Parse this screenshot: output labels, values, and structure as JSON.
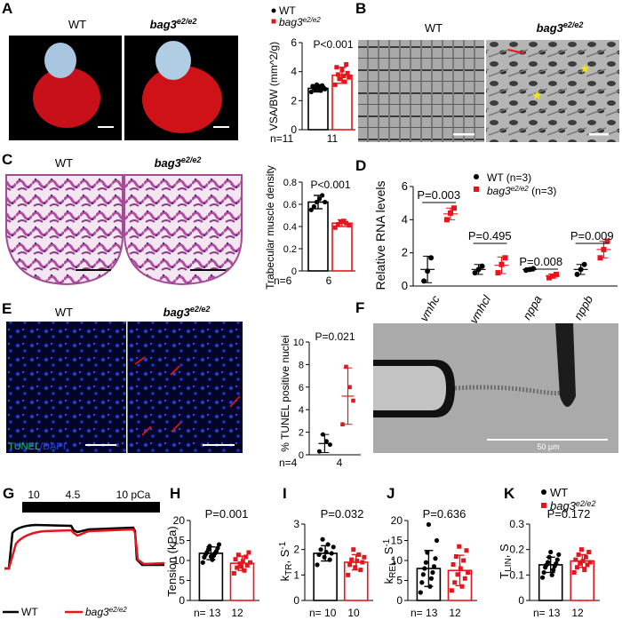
{
  "panels": {
    "A": "A",
    "B": "B",
    "C": "C",
    "D": "D",
    "E": "E",
    "F": "F",
    "G": "G",
    "H": "H",
    "I": "I",
    "J": "J",
    "K": "K"
  },
  "genotypes": {
    "wt": "WT",
    "mut": "bag3",
    "mut_sup": "e2/e2"
  },
  "colors": {
    "wt": "#000000",
    "mut": "#e8141b",
    "dapi": "#1f3fd8",
    "tunel": "#22c06a"
  },
  "figA": {
    "img_wt_label": "WT",
    "img_mut_label": "bag3",
    "img_mut_sup": "e2/e2",
    "legend_wt": "WT",
    "legend_mut": "bag3",
    "legend_mut_sup": "e2/e2",
    "ylabel": "VSA/BW (mm^2/g)",
    "pvalue": "P<0.001",
    "n_prefix": "n=11",
    "n2": "11"
  },
  "figB": {
    "wt_label": "WT",
    "mut_label": "bag3",
    "mut_sup": "e2/e2"
  },
  "figC": {
    "wt_label": "WT",
    "mut_label": "bag3",
    "mut_sup": "e2/e2",
    "ylabel": "Trabecular muscle density",
    "pvalue": "P<0.001",
    "n_prefix": "n=6",
    "n2": "6"
  },
  "figD": {
    "ylabel": "Relative RNA levels",
    "legend_wt": "WT (n=3)",
    "legend_mut": "bag3",
    "legend_mut_sup": "e2/e2",
    "legend_mut_n": " (n=3)",
    "genes": [
      "vmhc",
      "vmhcl",
      "nppa",
      "nppb"
    ],
    "pvalues": [
      "P=0.003",
      "P=0.495",
      "P=0.008",
      "P=0.009"
    ]
  },
  "figE": {
    "wt_label": "WT",
    "mut_label": "bag3",
    "mut_sup": "e2/e2",
    "stain_tunel": "TUNEL",
    "stain_sep": "/",
    "stain_dapi": "DAPI",
    "ylabel": "% TUNEL positive nuclei",
    "pvalue": "P=0.021",
    "n_prefix": "n=4",
    "n2": "4"
  },
  "figF": {
    "scale_label": "50 µm"
  },
  "figG": {
    "pca_labels": [
      "10",
      "4.5",
      "10 pCa"
    ],
    "legend_wt": "WT",
    "legend_mut": "bag3",
    "legend_mut_sup": "e2/e2"
  },
  "figH": {
    "ylabel": "Tension (kPa)",
    "pvalue": "P=0.001",
    "n_prefix": "n= 13",
    "n2": "12"
  },
  "figI": {
    "ylabel": "k",
    "ylabel_sub": "TR",
    "ylabel_unit": ", S",
    "ylabel_sup": "-1",
    "pvalue": "P=0.032",
    "n_prefix": "n= 10",
    "n2": "10"
  },
  "figJ": {
    "ylabel": "k",
    "ylabel_sub": "REL",
    "ylabel_unit": ", S",
    "ylabel_sup": "-1",
    "pvalue": "P=0.636",
    "n_prefix": "n= 13",
    "n2": "12"
  },
  "figK": {
    "ylabel": "T",
    "ylabel_sub": "LIN",
    "ylabel_unit": ", S",
    "pvalue": "P=0.172",
    "n_prefix": "n= 13",
    "n2": "12",
    "legend_wt": "WT",
    "legend_mut": "bag3",
    "legend_mut_sup": "e2/e2"
  },
  "chart_data": [
    {
      "panel": "A",
      "type": "bar",
      "categories": [
        "WT",
        "bag3 e2/e2"
      ],
      "values": [
        2.85,
        3.75
      ],
      "errors": [
        0.25,
        0.55
      ],
      "ylim": [
        0,
        6
      ],
      "yticks": [
        0,
        2,
        4,
        6
      ],
      "ylabel": "VSA/BW (mm^2/g)",
      "points": [
        [
          2.6,
          2.7,
          2.75,
          2.8,
          2.85,
          2.85,
          2.9,
          2.95,
          3.0,
          3.05,
          3.1
        ],
        [
          3.1,
          3.3,
          3.5,
          3.6,
          3.7,
          3.8,
          3.9,
          4.1,
          4.3,
          4.5,
          3.5
        ]
      ]
    },
    {
      "panel": "C",
      "type": "bar",
      "categories": [
        "WT",
        "bag3 e2/e2"
      ],
      "values": [
        0.62,
        0.43
      ],
      "errors": [
        0.06,
        0.03
      ],
      "ylim": [
        0,
        0.8
      ],
      "yticks": [
        0,
        0.2,
        0.4,
        0.6,
        0.8
      ],
      "ylabel": "Trabecular muscle density",
      "points": [
        [
          0.55,
          0.58,
          0.62,
          0.65,
          0.68,
          0.62
        ],
        [
          0.39,
          0.42,
          0.44,
          0.45,
          0.43,
          0.41
        ]
      ]
    },
    {
      "panel": "D",
      "type": "scatter",
      "categories": [
        "vmhc",
        "vmhcl",
        "nppa",
        "nppb"
      ],
      "ylim": [
        0,
        6
      ],
      "yticks": [
        0,
        2,
        4,
        6
      ],
      "ylabel": "Relative RNA levels",
      "series": [
        {
          "name": "WT (n=3)",
          "means": [
            1.0,
            1.0,
            1.0,
            1.0
          ],
          "sd": [
            0.8,
            0.3,
            0.1,
            0.3
          ],
          "points": [
            [
              0.3,
              0.9,
              1.7
            ],
            [
              0.8,
              1.0,
              1.2
            ],
            [
              0.95,
              1.0,
              1.05
            ],
            [
              0.7,
              1.0,
              1.3
            ]
          ]
        },
        {
          "name": "bag3 e2/e2 (n=3)",
          "means": [
            4.35,
            1.25,
            0.6,
            2.2
          ],
          "sd": [
            0.35,
            0.5,
            0.12,
            0.5
          ],
          "points": [
            [
              4.0,
              4.4,
              4.7
            ],
            [
              0.8,
              1.3,
              1.7
            ],
            [
              0.5,
              0.6,
              0.7
            ],
            [
              1.7,
              2.2,
              2.7
            ]
          ]
        }
      ]
    },
    {
      "panel": "E",
      "type": "scatter",
      "categories": [
        "WT",
        "bag3 e2/e2"
      ],
      "values": [
        1.0,
        5.2
      ],
      "errors": [
        0.8,
        2.5
      ],
      "ylim": [
        0,
        10
      ],
      "yticks": [
        0,
        2,
        4,
        6,
        8,
        10
      ],
      "ylabel": "% TUNEL positive nuclei",
      "points": [
        [
          0.3,
          0.9,
          1.2,
          1.8
        ],
        [
          2.7,
          4.8,
          6.0,
          7.8
        ]
      ]
    },
    {
      "panel": "H",
      "type": "bar",
      "categories": [
        "WT",
        "bag3 e2/e2"
      ],
      "values": [
        11.8,
        9.3
      ],
      "errors": [
        1.6,
        1.8
      ],
      "ylim": [
        0,
        20
      ],
      "yticks": [
        0,
        5,
        10,
        15,
        20
      ],
      "ylabel": "Tension (kPa)",
      "points": [
        [
          9.5,
          10.2,
          10.8,
          11.2,
          11.5,
          11.8,
          12.0,
          12.3,
          12.7,
          13.1,
          13.6,
          14.0,
          11.0
        ],
        [
          6.8,
          7.5,
          8.2,
          8.8,
          9.2,
          9.5,
          9.8,
          10.3,
          10.9,
          11.4,
          12.0,
          8.5
        ]
      ]
    },
    {
      "panel": "I",
      "type": "bar",
      "categories": [
        "WT",
        "bag3 e2/e2"
      ],
      "values": [
        1.85,
        1.5
      ],
      "errors": [
        0.3,
        0.3
      ],
      "ylim": [
        0,
        3
      ],
      "yticks": [
        0,
        1,
        2,
        3
      ],
      "ylabel": "kTR, S-1",
      "points": [
        [
          1.4,
          1.6,
          1.7,
          1.8,
          1.85,
          1.9,
          2.0,
          2.1,
          2.2,
          2.4
        ],
        [
          1.0,
          1.2,
          1.3,
          1.4,
          1.5,
          1.55,
          1.6,
          1.7,
          1.8,
          2.0
        ]
      ]
    },
    {
      "panel": "J",
      "type": "bar",
      "categories": [
        "WT",
        "bag3 e2/e2"
      ],
      "values": [
        8.0,
        7.5
      ],
      "errors": [
        4.5,
        3.8
      ],
      "ylim": [
        0,
        20
      ],
      "yticks": [
        0,
        5,
        10,
        15,
        20
      ],
      "ylabel": "kREL, S-1",
      "points": [
        [
          2.0,
          3.5,
          4.5,
          5.5,
          6.5,
          7.0,
          8.0,
          8.5,
          9.5,
          10.5,
          12.0,
          15.0,
          19.0
        ],
        [
          2.5,
          3.5,
          4.5,
          5.5,
          6.5,
          7.0,
          8.0,
          9.0,
          10.0,
          11.0,
          12.5,
          13.5
        ]
      ]
    },
    {
      "panel": "K",
      "type": "bar",
      "categories": [
        "WT",
        "bag3 e2/e2"
      ],
      "values": [
        0.14,
        0.155
      ],
      "errors": [
        0.03,
        0.025
      ],
      "ylim": [
        0,
        0.3
      ],
      "yticks": [
        0,
        0.1,
        0.2,
        0.3
      ],
      "ylabel": "TLIN, S",
      "points": [
        [
          0.09,
          0.1,
          0.11,
          0.12,
          0.13,
          0.135,
          0.14,
          0.145,
          0.15,
          0.16,
          0.17,
          0.18,
          0.19
        ],
        [
          0.11,
          0.12,
          0.13,
          0.14,
          0.145,
          0.15,
          0.155,
          0.16,
          0.17,
          0.18,
          0.19,
          0.2
        ]
      ]
    }
  ]
}
